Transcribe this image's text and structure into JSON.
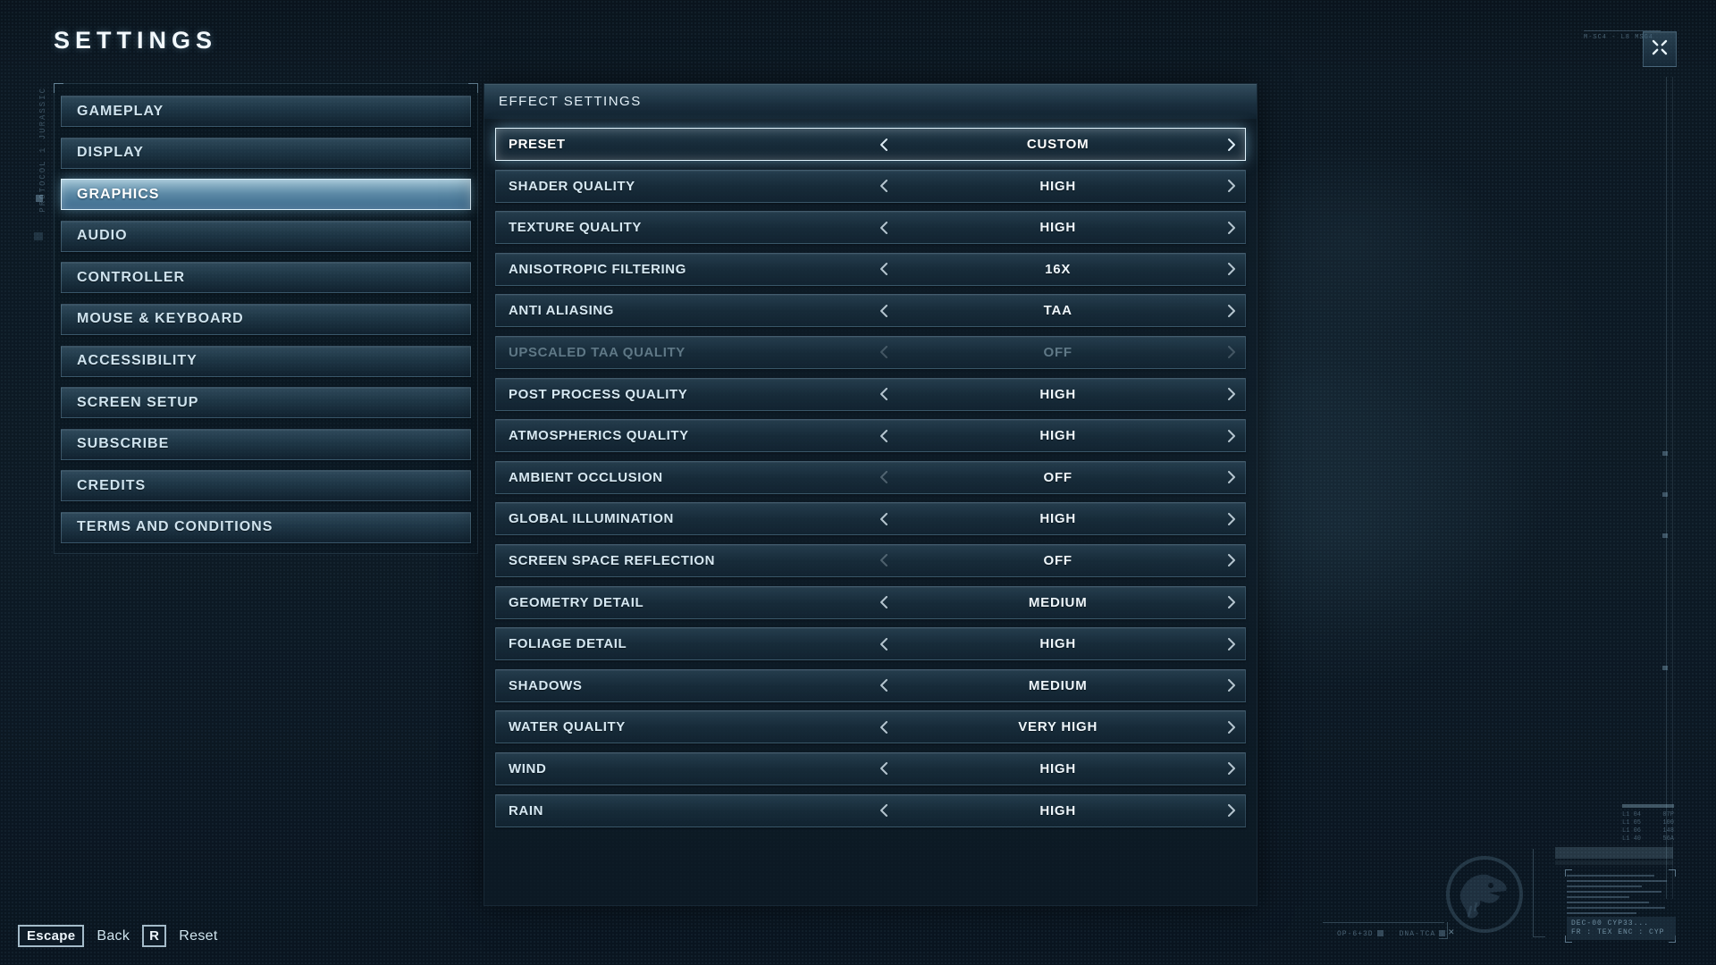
{
  "title": "SETTINGS",
  "colors": {
    "background": "#0c1822",
    "panel": "#16293a",
    "selection": "#6591ac",
    "selection_border": "#dff2fc",
    "text": "#d6e8f2",
    "disabled_text": "#5f7886"
  },
  "sidebar": {
    "items": [
      {
        "label": "GAMEPLAY",
        "selected": false
      },
      {
        "label": "DISPLAY",
        "selected": false
      },
      {
        "label": "GRAPHICS",
        "selected": true
      },
      {
        "label": "AUDIO",
        "selected": false
      },
      {
        "label": "CONTROLLER",
        "selected": false
      },
      {
        "label": "MOUSE & KEYBOARD",
        "selected": false
      },
      {
        "label": "ACCESSIBILITY",
        "selected": false
      },
      {
        "label": "SCREEN SETUP",
        "selected": false
      },
      {
        "label": "SUBSCRIBE",
        "selected": false
      },
      {
        "label": "CREDITS",
        "selected": false
      },
      {
        "label": "TERMS AND CONDITIONS",
        "selected": false
      }
    ]
  },
  "panel": {
    "header": "EFFECT SETTINGS",
    "rows": [
      {
        "label": "PRESET",
        "value": "CUSTOM",
        "selected": true,
        "disabled": false,
        "at_min": false
      },
      {
        "label": "SHADER QUALITY",
        "value": "HIGH",
        "selected": false,
        "disabled": false,
        "at_min": false
      },
      {
        "label": "TEXTURE QUALITY",
        "value": "HIGH",
        "selected": false,
        "disabled": false,
        "at_min": false
      },
      {
        "label": "ANISOTROPIC FILTERING",
        "value": "16X",
        "selected": false,
        "disabled": false,
        "at_min": false
      },
      {
        "label": "ANTI ALIASING",
        "value": "TAA",
        "selected": false,
        "disabled": false,
        "at_min": false
      },
      {
        "label": "UPSCALED TAA QUALITY",
        "value": "OFF",
        "selected": false,
        "disabled": true,
        "at_min": true
      },
      {
        "label": "POST PROCESS QUALITY",
        "value": "HIGH",
        "selected": false,
        "disabled": false,
        "at_min": false
      },
      {
        "label": "ATMOSPHERICS QUALITY",
        "value": "HIGH",
        "selected": false,
        "disabled": false,
        "at_min": false
      },
      {
        "label": "AMBIENT OCCLUSION",
        "value": "OFF",
        "selected": false,
        "disabled": false,
        "at_min": true
      },
      {
        "label": "GLOBAL ILLUMINATION",
        "value": "HIGH",
        "selected": false,
        "disabled": false,
        "at_min": false
      },
      {
        "label": "SCREEN SPACE REFLECTION",
        "value": "OFF",
        "selected": false,
        "disabled": false,
        "at_min": true
      },
      {
        "label": "GEOMETRY DETAIL",
        "value": "MEDIUM",
        "selected": false,
        "disabled": false,
        "at_min": false
      },
      {
        "label": "FOLIAGE DETAIL",
        "value": "HIGH",
        "selected": false,
        "disabled": false,
        "at_min": false
      },
      {
        "label": "SHADOWS",
        "value": "MEDIUM",
        "selected": false,
        "disabled": false,
        "at_min": false
      },
      {
        "label": "WATER QUALITY",
        "value": "VERY HIGH",
        "selected": false,
        "disabled": false,
        "at_min": false
      },
      {
        "label": "WIND",
        "value": "HIGH",
        "selected": false,
        "disabled": false,
        "at_min": false
      },
      {
        "label": "RAIN",
        "value": "HIGH",
        "selected": false,
        "disabled": false,
        "at_min": false
      }
    ]
  },
  "footer": {
    "escape_key": "Escape",
    "back_label": "Back",
    "reset_key": "R",
    "reset_label": "Reset"
  },
  "hud": {
    "protocol_text": "PROTOCOL 1 JURASSIC",
    "topright_text": "M-SC4 - L8 MSG4",
    "side_table": [
      "L1 04|07P",
      "L1 05|100",
      "L1 06|148",
      "L1 40|56A"
    ],
    "decoder_line1": "DEC-00 CYP33...",
    "decoder_line2": "FR : TEX  ENC : CYP",
    "bottom_tag1": "OP-6+3D",
    "bottom_tag2": "DNA-TCA"
  }
}
